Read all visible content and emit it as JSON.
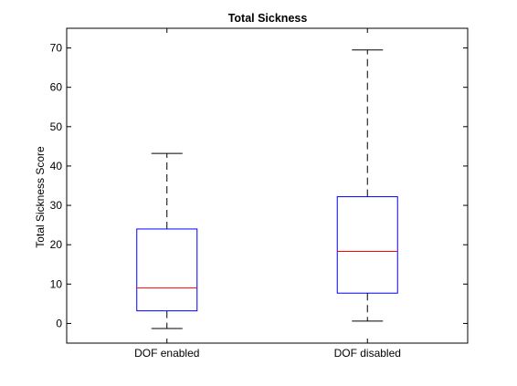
{
  "chart_data": {
    "type": "box",
    "title": "Total Sickness",
    "xlabel": "",
    "ylabel": "Total Sickness Score",
    "ylim": [
      -5,
      75
    ],
    "yticks": [
      0,
      10,
      20,
      30,
      40,
      50,
      60,
      70
    ],
    "categories": [
      "DOF enabled",
      "DOF disabled"
    ],
    "boxes": [
      {
        "category": "DOF enabled",
        "whisker_low": -1.3,
        "q1": 3.2,
        "median": 9.0,
        "q3": 24.0,
        "whisker_high": 43.2
      },
      {
        "category": "DOF disabled",
        "whisker_low": 0.6,
        "q1": 7.7,
        "median": 18.3,
        "q3": 32.2,
        "whisker_high": 69.5
      }
    ],
    "grid": false,
    "colors": {
      "box": "#0000ff",
      "median": "#ff0000",
      "whisker": "#000000"
    }
  }
}
